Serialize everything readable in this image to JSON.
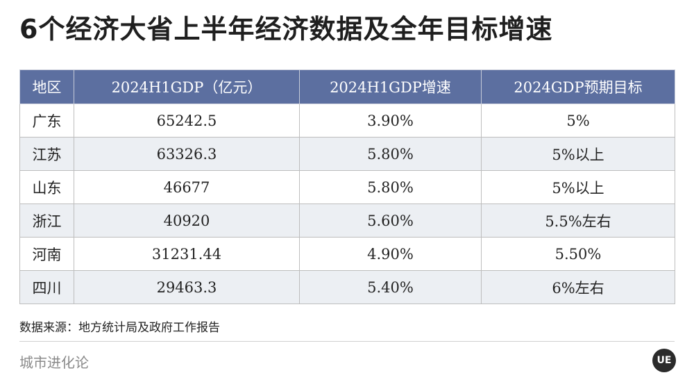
{
  "title": "6个经济大省上半年经济数据及全年目标增速",
  "table": {
    "headers": [
      "地区",
      "2024H1GDP（亿元）",
      "2024H1GDP增速",
      "2024GDP预期目标"
    ],
    "rows": [
      [
        "广东",
        "65242.5",
        "3.90%",
        "5%"
      ],
      [
        "江苏",
        "63326.3",
        "5.80%",
        "5%以上"
      ],
      [
        "山东",
        "46677",
        "5.80%",
        "5%以上"
      ],
      [
        "浙江",
        "40920",
        "5.60%",
        "5.5%左右"
      ],
      [
        "河南",
        "31231.44",
        "4.90%",
        "5.50%"
      ],
      [
        "四川",
        "29463.3",
        "5.40%",
        "6%左右"
      ]
    ]
  },
  "source": "数据来源：地方统计局及政府工作报告",
  "brand": "城市进化论",
  "logo_text": "UE",
  "colors": {
    "header_bg": "#5c6fa0",
    "stripe_bg": "#eceff3"
  }
}
